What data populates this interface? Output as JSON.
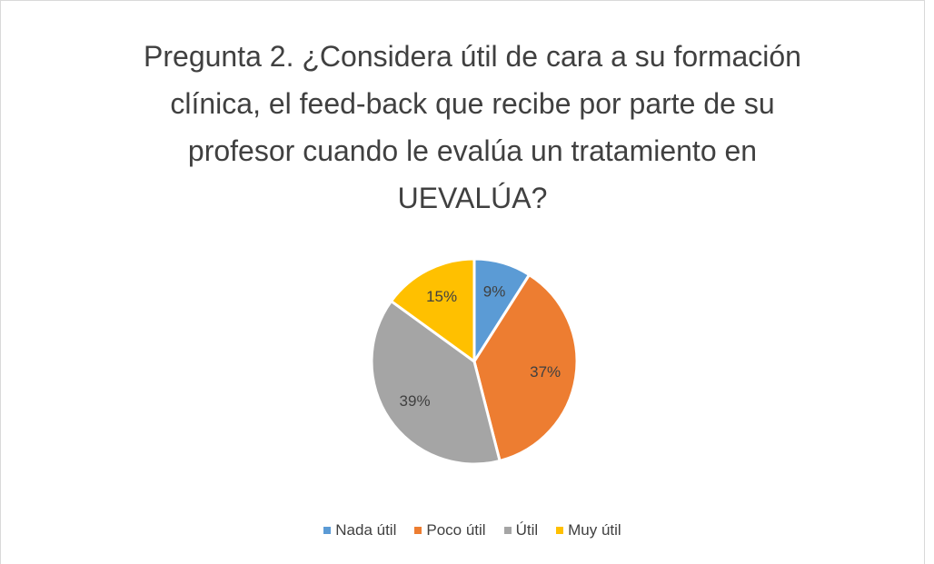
{
  "chart_data": {
    "type": "pie",
    "title": "Pregunta 2. ¿Considera útil de cara a su formación clínica, el feed-back que recibe por parte de su profesor cuando le evalúa un tratamiento en UEVALÚA?",
    "categories": [
      "Nada útil",
      "Poco útil",
      "Útil",
      "Muy útil"
    ],
    "values": [
      9,
      37,
      39,
      15
    ],
    "value_labels": [
      "9%",
      "37%",
      "39%",
      "15%"
    ],
    "colors": [
      "#5b9bd5",
      "#ed7d31",
      "#a5a5a5",
      "#ffc000"
    ],
    "legend": "bottom"
  }
}
